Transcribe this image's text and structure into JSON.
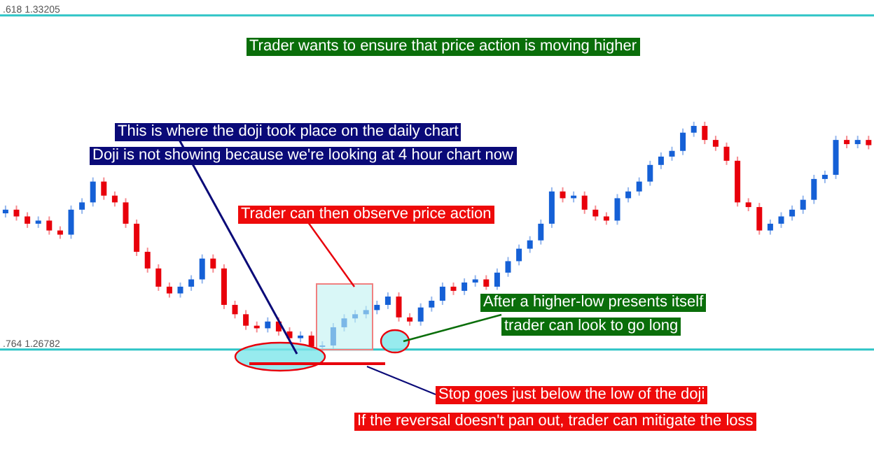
{
  "chart_data": {
    "type": "candlestick",
    "categories": [
      null,
      null,
      null,
      null,
      null,
      null,
      null,
      null,
      null,
      null,
      null,
      null,
      null,
      null,
      null,
      null,
      null,
      null,
      null,
      null,
      null,
      null,
      null,
      null,
      null,
      null,
      null,
      null,
      null,
      null,
      null,
      null,
      null,
      null,
      null,
      null,
      null,
      null,
      null,
      null,
      null,
      null,
      null,
      null,
      null,
      null,
      null,
      null,
      null,
      null,
      null,
      null,
      null,
      null,
      null,
      null,
      null,
      null,
      null,
      null,
      null,
      null,
      null,
      null,
      null,
      null,
      null,
      null,
      null,
      null,
      null,
      null,
      null,
      null,
      null,
      null,
      null,
      null,
      null,
      null
    ],
    "ohlc": [
      [
        1.294,
        1.2955,
        1.2932,
        1.2947
      ],
      [
        1.2947,
        1.2955,
        1.2926,
        1.2934
      ],
      [
        1.2934,
        1.2942,
        1.2912,
        1.292
      ],
      [
        1.292,
        1.2934,
        1.2912,
        1.2926
      ],
      [
        1.2926,
        1.2934,
        1.2899,
        1.2907
      ],
      [
        1.2907,
        1.2915,
        1.2891,
        1.2899
      ],
      [
        1.2899,
        1.2955,
        1.2891,
        1.2947
      ],
      [
        1.2947,
        1.2969,
        1.2939,
        1.2961
      ],
      [
        1.2961,
        1.3009,
        1.2953,
        1.3001
      ],
      [
        1.3001,
        1.3009,
        1.2966,
        1.2974
      ],
      [
        1.2974,
        1.2982,
        1.2953,
        1.2961
      ],
      [
        1.2961,
        1.2969,
        1.2912,
        1.292
      ],
      [
        1.292,
        1.2928,
        1.2858,
        1.2866
      ],
      [
        1.2866,
        1.2874,
        1.2826,
        1.2834
      ],
      [
        1.2834,
        1.2842,
        1.2791,
        1.2799
      ],
      [
        1.2799,
        1.2807,
        1.2778,
        1.2786
      ],
      [
        1.2786,
        1.2807,
        1.2778,
        1.2799
      ],
      [
        1.2799,
        1.2821,
        1.2791,
        1.2813
      ],
      [
        1.2813,
        1.2861,
        1.2805,
        1.2853
      ],
      [
        1.2853,
        1.2861,
        1.2826,
        1.2834
      ],
      [
        1.2834,
        1.2842,
        1.2756,
        1.2764
      ],
      [
        1.2764,
        1.2772,
        1.2738,
        1.2746
      ],
      [
        1.2746,
        1.2754,
        1.2716,
        1.2724
      ],
      [
        1.2724,
        1.2732,
        1.2711,
        1.2719
      ],
      [
        1.2719,
        1.274,
        1.2711,
        1.2732
      ],
      [
        1.2732,
        1.274,
        1.2705,
        1.2713
      ],
      [
        1.2713,
        1.2721,
        1.2692,
        1.27
      ],
      [
        1.27,
        1.2713,
        1.2692,
        1.2705
      ],
      [
        1.2705,
        1.2713,
        1.2676,
        1.2684
      ],
      [
        1.2684,
        1.2694,
        1.2674,
        1.2686
      ],
      [
        1.2686,
        1.2729,
        1.2678,
        1.2721
      ],
      [
        1.2721,
        1.2746,
        1.2713,
        1.2738
      ],
      [
        1.2738,
        1.2754,
        1.273,
        1.2746
      ],
      [
        1.2746,
        1.2762,
        1.2738,
        1.2754
      ],
      [
        1.2754,
        1.2772,
        1.2746,
        1.2764
      ],
      [
        1.2764,
        1.2788,
        1.2756,
        1.278
      ],
      [
        1.278,
        1.2788,
        1.2732,
        1.274
      ],
      [
        1.274,
        1.2748,
        1.2724,
        1.2732
      ],
      [
        1.2732,
        1.2767,
        1.2724,
        1.2759
      ],
      [
        1.2759,
        1.278,
        1.2751,
        1.2772
      ],
      [
        1.2772,
        1.2807,
        1.2764,
        1.2799
      ],
      [
        1.2799,
        1.2807,
        1.2783,
        1.2791
      ],
      [
        1.2791,
        1.2815,
        1.2783,
        1.2807
      ],
      [
        1.2807,
        1.2821,
        1.2799,
        1.2813
      ],
      [
        1.2813,
        1.2821,
        1.2793,
        1.2799
      ],
      [
        1.2799,
        1.2834,
        1.2793,
        1.2826
      ],
      [
        1.2826,
        1.2856,
        1.2818,
        1.2848
      ],
      [
        1.2848,
        1.288,
        1.284,
        1.2872
      ],
      [
        1.2872,
        1.2896,
        1.2864,
        1.2888
      ],
      [
        1.2888,
        1.2928,
        1.288,
        1.292
      ],
      [
        1.292,
        1.299,
        1.2912,
        1.2982
      ],
      [
        1.2982,
        1.299,
        1.2961,
        1.2969
      ],
      [
        1.2969,
        1.2982,
        1.2961,
        1.2974
      ],
      [
        1.2974,
        1.2982,
        1.2939,
        1.2947
      ],
      [
        1.2947,
        1.2955,
        1.2926,
        1.2934
      ],
      [
        1.2934,
        1.2942,
        1.2918,
        1.2926
      ],
      [
        1.2926,
        1.2977,
        1.2918,
        1.2969
      ],
      [
        1.2969,
        1.299,
        1.2961,
        1.2982
      ],
      [
        1.2982,
        1.3009,
        1.2974,
        1.3001
      ],
      [
        1.3001,
        1.3041,
        1.2993,
        1.3033
      ],
      [
        1.3033,
        1.3057,
        1.3025,
        1.3049
      ],
      [
        1.3049,
        1.3068,
        1.3041,
        1.306
      ],
      [
        1.306,
        1.3103,
        1.3052,
        1.3095
      ],
      [
        1.3095,
        1.3116,
        1.3087,
        1.3108
      ],
      [
        1.3108,
        1.3116,
        1.3073,
        1.3081
      ],
      [
        1.3081,
        1.3089,
        1.306,
        1.3068
      ],
      [
        1.3068,
        1.3076,
        1.3033,
        1.3041
      ],
      [
        1.3041,
        1.3049,
        1.2953,
        1.2961
      ],
      [
        1.2961,
        1.2969,
        1.2944,
        1.2952
      ],
      [
        1.2952,
        1.296,
        1.2899,
        1.2907
      ],
      [
        1.2907,
        1.2928,
        1.2899,
        1.292
      ],
      [
        1.292,
        1.2942,
        1.2912,
        1.2934
      ],
      [
        1.2934,
        1.2955,
        1.2926,
        1.2947
      ],
      [
        1.2947,
        1.2974,
        1.2939,
        1.2966
      ],
      [
        1.2966,
        1.3014,
        1.2958,
        1.3006
      ],
      [
        1.3006,
        1.3022,
        1.2998,
        1.3014
      ],
      [
        1.3014,
        1.3089,
        1.3006,
        1.3081
      ],
      [
        1.3081,
        1.3089,
        1.3065,
        1.3073
      ],
      [
        1.3073,
        1.3089,
        1.3065,
        1.3081
      ],
      [
        1.3081,
        1.3089,
        1.3063,
        1.3071
      ]
    ],
    "ylim": [
      1.2487,
      1.335
    ],
    "tick_labels": false,
    "ref_lines": [
      {
        "axis": "y",
        "value": 1.33205,
        "label": ".618 1.33205",
        "color": "#2ec4c6"
      },
      {
        "axis": "y",
        "value": 1.26782,
        "label": ".764 1.26782",
        "color": "#2ec4c6"
      }
    ],
    "annotations": [
      "Trader wants to ensure that price action is moving higher",
      "This is where the doji took place on the daily chart",
      "Doji is not showing because we're looking at 4 hour chart now",
      "Trader can then observe price action",
      "After a higher-low presents itself",
      "trader can look to go long",
      "Stop goes just below the low of the doji",
      "If the reversal doesn't pan out, trader can mitigate the loss"
    ]
  }
}
